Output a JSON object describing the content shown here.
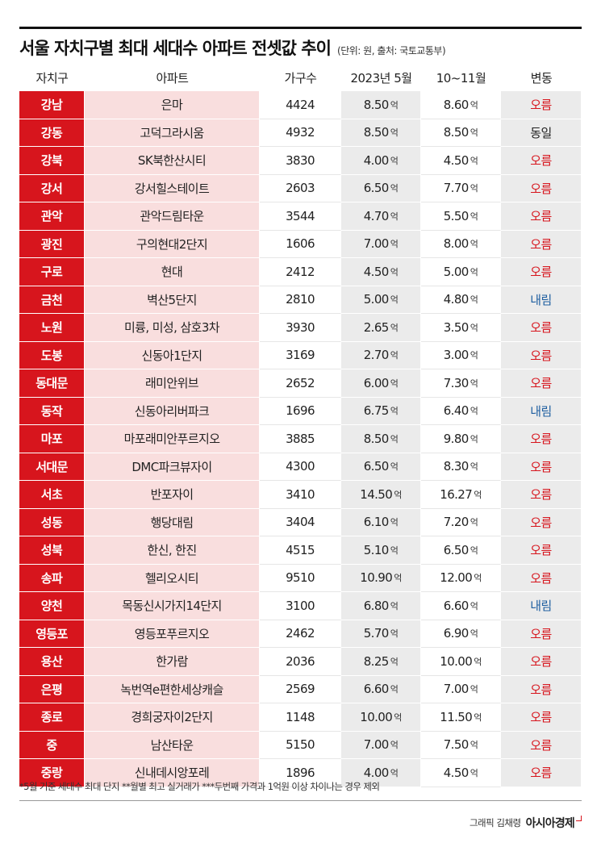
{
  "header": {
    "title": "서울 자치구별 최대 세대수 아파트 전셋값 추이",
    "subtitle": "(단위: 원, 출처: 국토교통부)"
  },
  "columns": {
    "district": "자치구",
    "apartment": "아파트",
    "households": "가구수",
    "price_may": "2023년 5월",
    "price_oct_nov": "10~11월",
    "change": "변동"
  },
  "unit_label": "억",
  "colors": {
    "accent_red": "#d7151d",
    "apt_pink": "#f9dede",
    "gray_cell": "#ebebeb",
    "down_blue": "#1f5fa0"
  },
  "rows": [
    {
      "district": "강남",
      "apartment": "은마",
      "households": "4424",
      "price_may": "8.50",
      "price_oct_nov": "8.60",
      "change": "오름",
      "dir": "up"
    },
    {
      "district": "강동",
      "apartment": "고덕그라시움",
      "households": "4932",
      "price_may": "8.50",
      "price_oct_nov": "8.50",
      "change": "동일",
      "dir": "same"
    },
    {
      "district": "강북",
      "apartment": "SK북한산시티",
      "households": "3830",
      "price_may": "4.00",
      "price_oct_nov": "4.50",
      "change": "오름",
      "dir": "up"
    },
    {
      "district": "강서",
      "apartment": "강서힐스테이트",
      "households": "2603",
      "price_may": "6.50",
      "price_oct_nov": "7.70",
      "change": "오름",
      "dir": "up"
    },
    {
      "district": "관악",
      "apartment": "관악드림타운",
      "households": "3544",
      "price_may": "4.70",
      "price_oct_nov": "5.50",
      "change": "오름",
      "dir": "up"
    },
    {
      "district": "광진",
      "apartment": "구의현대2단지",
      "households": "1606",
      "price_may": "7.00",
      "price_oct_nov": "8.00",
      "change": "오름",
      "dir": "up"
    },
    {
      "district": "구로",
      "apartment": "현대",
      "households": "2412",
      "price_may": "4.50",
      "price_oct_nov": "5.00",
      "change": "오름",
      "dir": "up"
    },
    {
      "district": "금천",
      "apartment": "벽산5단지",
      "households": "2810",
      "price_may": "5.00",
      "price_oct_nov": "4.80",
      "change": "내림",
      "dir": "down"
    },
    {
      "district": "노원",
      "apartment": "미륭, 미성, 삼호3차",
      "households": "3930",
      "price_may": "2.65",
      "price_oct_nov": "3.50",
      "change": "오름",
      "dir": "up"
    },
    {
      "district": "도봉",
      "apartment": "신동아1단지",
      "households": "3169",
      "price_may": "2.70",
      "price_oct_nov": "3.00",
      "change": "오름",
      "dir": "up"
    },
    {
      "district": "동대문",
      "apartment": "래미안위브",
      "households": "2652",
      "price_may": "6.00",
      "price_oct_nov": "7.30",
      "change": "오름",
      "dir": "up"
    },
    {
      "district": "동작",
      "apartment": "신동아리버파크",
      "households": "1696",
      "price_may": "6.75",
      "price_oct_nov": "6.40",
      "change": "내림",
      "dir": "down"
    },
    {
      "district": "마포",
      "apartment": "마포래미안푸르지오",
      "households": "3885",
      "price_may": "8.50",
      "price_oct_nov": "9.80",
      "change": "오름",
      "dir": "up"
    },
    {
      "district": "서대문",
      "apartment": "DMC파크뷰자이",
      "households": "4300",
      "price_may": "6.50",
      "price_oct_nov": "8.30",
      "change": "오름",
      "dir": "up"
    },
    {
      "district": "서초",
      "apartment": "반포자이",
      "households": "3410",
      "price_may": "14.50",
      "price_oct_nov": "16.27",
      "change": "오름",
      "dir": "up"
    },
    {
      "district": "성동",
      "apartment": "행당대림",
      "households": "3404",
      "price_may": "6.10",
      "price_oct_nov": "7.20",
      "change": "오름",
      "dir": "up"
    },
    {
      "district": "성북",
      "apartment": "한신, 한진",
      "households": "4515",
      "price_may": "5.10",
      "price_oct_nov": "6.50",
      "change": "오름",
      "dir": "up"
    },
    {
      "district": "송파",
      "apartment": "헬리오시티",
      "households": "9510",
      "price_may": "10.90",
      "price_oct_nov": "12.00",
      "change": "오름",
      "dir": "up"
    },
    {
      "district": "양천",
      "apartment": "목동신시가지14단지",
      "households": "3100",
      "price_may": "6.80",
      "price_oct_nov": "6.60",
      "change": "내림",
      "dir": "down"
    },
    {
      "district": "영등포",
      "apartment": "영등포푸르지오",
      "households": "2462",
      "price_may": "5.70",
      "price_oct_nov": "6.90",
      "change": "오름",
      "dir": "up"
    },
    {
      "district": "용산",
      "apartment": "한가람",
      "households": "2036",
      "price_may": "8.25",
      "price_oct_nov": "10.00",
      "change": "오름",
      "dir": "up"
    },
    {
      "district": "은평",
      "apartment": "녹번역e편한세상캐슬",
      "households": "2569",
      "price_may": "6.60",
      "price_oct_nov": "7.00",
      "change": "오름",
      "dir": "up"
    },
    {
      "district": "종로",
      "apartment": "경희궁자이2단지",
      "households": "1148",
      "price_may": "10.00",
      "price_oct_nov": "11.50",
      "change": "오름",
      "dir": "up"
    },
    {
      "district": "중",
      "apartment": "남산타운",
      "households": "5150",
      "price_may": "7.00",
      "price_oct_nov": "7.50",
      "change": "오름",
      "dir": "up"
    },
    {
      "district": "중랑",
      "apartment": "신내데시앙포레",
      "households": "1896",
      "price_may": "4.00",
      "price_oct_nov": "4.50",
      "change": "오름",
      "dir": "up"
    }
  ],
  "footnote": "*5월 기준 세대수 최대 단지  **월별 최고 실거래가  ***두번째 가격과 1억원 이상 차이나는 경우 제외",
  "credit": {
    "graphic": "그래픽 김채령",
    "brand": "아시아경제"
  }
}
